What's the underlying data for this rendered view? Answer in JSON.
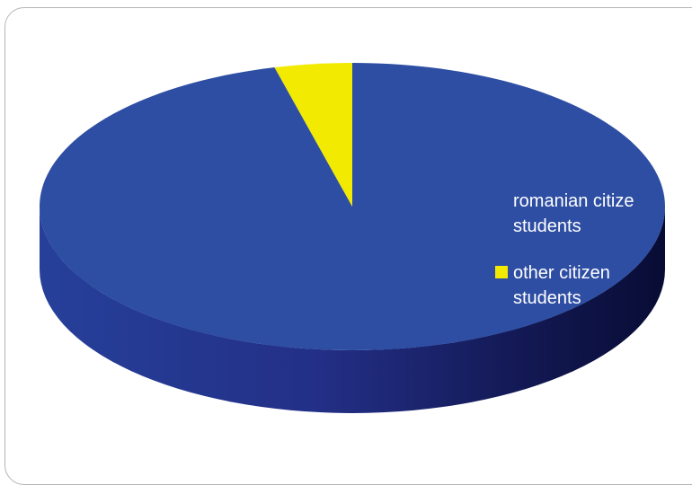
{
  "chart_data": {
    "type": "pie",
    "style": "3d",
    "title": "",
    "slices": [
      {
        "label": "romanian citizen students",
        "value": 96,
        "color": "#2e4ea3"
      },
      {
        "label": "other citizen students",
        "value": 4,
        "color": "#f2ea00"
      }
    ],
    "legend": {
      "placement": "right",
      "entries": [
        {
          "lines": [
            "romanian citize",
            "students"
          ],
          "color": "#2e4ea3"
        },
        {
          "lines": [
            "other citizen",
            "students"
          ],
          "color": "#f2ea00"
        }
      ]
    }
  }
}
